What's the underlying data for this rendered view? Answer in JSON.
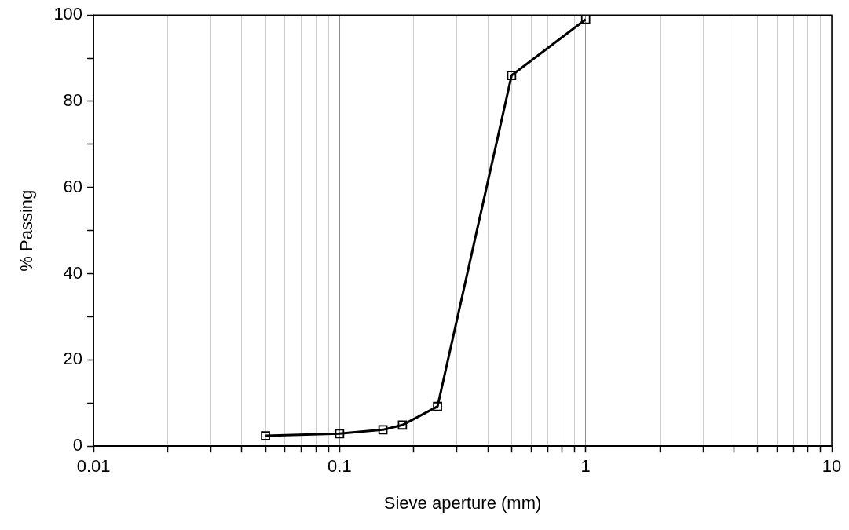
{
  "chart_data": {
    "type": "line",
    "xlabel": "Sieve aperture (mm)",
    "ylabel": "% Passing",
    "x": [
      0.05,
      0.1,
      0.15,
      0.18,
      0.25,
      0.5,
      1
    ],
    "series": [
      {
        "color": "#000000",
        "values": [
          2.4,
          2.9,
          3.8,
          4.9,
          9.2,
          86,
          99
        ]
      }
    ],
    "log": "x",
    "xlim": [
      0.01,
      10
    ],
    "xticks": [
      0.01,
      {
        "value": 0.02,
        "label": null
      },
      {
        "value": 0.03,
        "label": null
      },
      {
        "value": 0.04,
        "label": null
      },
      {
        "value": 0.05,
        "label": null
      },
      {
        "value": 0.06,
        "label": null
      },
      {
        "value": 0.07,
        "label": null
      },
      {
        "value": 0.08,
        "label": null
      },
      {
        "value": 0.09,
        "label": null
      },
      0.1,
      {
        "value": 0.2,
        "label": null
      },
      {
        "value": 0.3,
        "label": null
      },
      {
        "value": 0.4,
        "label": null
      },
      {
        "value": 0.5,
        "label": null
      },
      {
        "value": 0.6,
        "label": null
      },
      {
        "value": 0.7,
        "label": null
      },
      {
        "value": 0.8,
        "label": null
      },
      {
        "value": 0.9,
        "label": null
      },
      1,
      {
        "value": 2,
        "label": null
      },
      {
        "value": 3,
        "label": null
      },
      {
        "value": 4,
        "label": null
      },
      {
        "value": 5,
        "label": null
      },
      {
        "value": 6,
        "label": null
      },
      {
        "value": 7,
        "label": null
      },
      {
        "value": 8,
        "label": null
      },
      {
        "value": 9,
        "label": null
      },
      10
    ],
    "ylim": [
      0,
      100
    ],
    "yticks": [
      0,
      {
        "value": 10,
        "label": null
      },
      20,
      {
        "value": 30,
        "label": null
      },
      40,
      {
        "value": 50,
        "label": null
      },
      60,
      {
        "value": 70,
        "label": null
      },
      80,
      {
        "value": 90,
        "label": null
      },
      100
    ],
    "grid": "x",
    "legend": false,
    "marker": "square",
    "line_style": "solid"
  }
}
